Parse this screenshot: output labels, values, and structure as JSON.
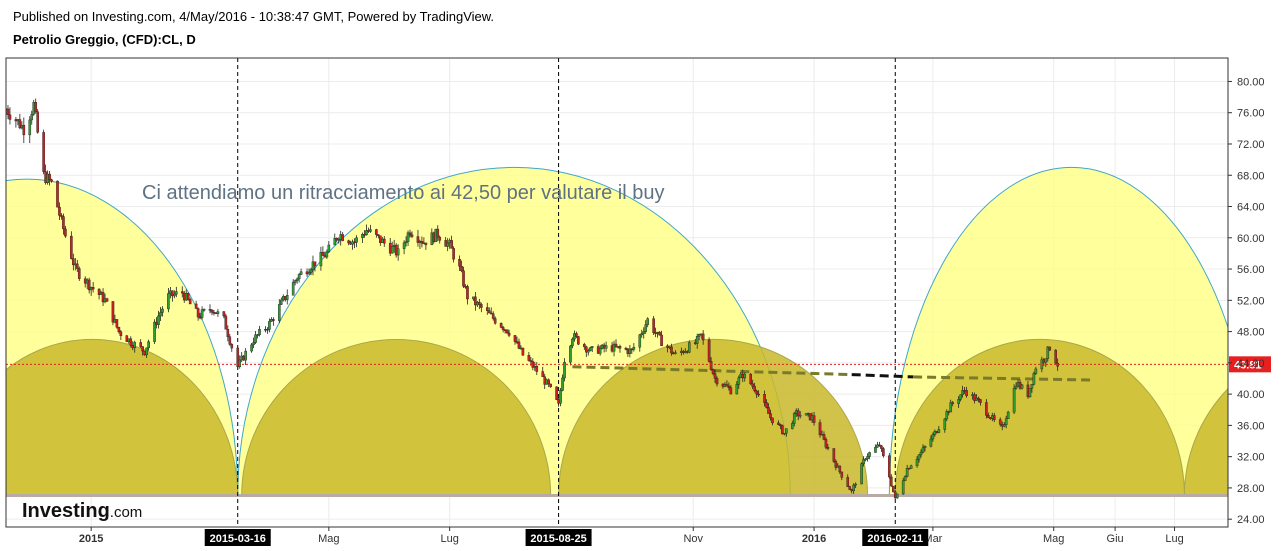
{
  "header": {
    "published": "Published on Investing.com, 4/May/2016 - 10:38:47 GMT, Powered by TradingView.",
    "symbol": "Petrolio Greggio, (CFD):CL, D"
  },
  "annotation": "Ci attendiamo un ritracciamento ai 42,50 per valutare il buy",
  "logo": {
    "main": "Investing",
    "tld": ".com"
  },
  "colors": {
    "up": "#2e9e2e",
    "down": "#cc1f1f",
    "arc_fill": "#ffff80",
    "arc_stroke": "#3ea8c7",
    "inner_fill": "#c9b92a",
    "price_line": "#e62020",
    "trend_line": "#7a7a2a"
  },
  "chart_data": {
    "type": "candlestick",
    "y_ticks": [
      80,
      76,
      72,
      68,
      64,
      60,
      56,
      52,
      48,
      44,
      40,
      36,
      32,
      28,
      24
    ],
    "x_ticks": [
      {
        "label": "2015",
        "date": "2015-01-01",
        "bold": true
      },
      {
        "label": "Mag",
        "date": "2015-05-01"
      },
      {
        "label": "Lug",
        "date": "2015-07-01"
      },
      {
        "label": "Nov",
        "date": "2015-11-01"
      },
      {
        "label": "2016",
        "date": "2016-01-01",
        "bold": true
      },
      {
        "label": "Mar",
        "date": "2016-03-01"
      },
      {
        "label": "Mag",
        "date": "2016-05-01"
      },
      {
        "label": "Giu",
        "date": "2016-06-01"
      },
      {
        "label": "Lug",
        "date": "2016-07-01"
      }
    ],
    "vertical_markers": [
      {
        "label": "2015-03-16",
        "date": "2015-03-16"
      },
      {
        "label": "2015-08-25",
        "date": "2015-08-25"
      },
      {
        "label": "2016-02-11",
        "date": "2016-02-11"
      }
    ],
    "last_price": 43.81,
    "last_price_label": "43.81",
    "ylim": [
      23,
      83
    ],
    "xlim": [
      "2014-11-19",
      "2016-07-28"
    ],
    "path": [
      {
        "date": "2014-11-19",
        "price": 76.5
      },
      {
        "date": "2014-11-28",
        "price": 74.0
      },
      {
        "date": "2014-12-03",
        "price": 77.0
      },
      {
        "date": "2014-12-08",
        "price": 68.0
      },
      {
        "date": "2014-12-12",
        "price": 67.0
      },
      {
        "date": "2014-12-17",
        "price": 62.0
      },
      {
        "date": "2014-12-24",
        "price": 56.0
      },
      {
        "date": "2014-12-31",
        "price": 54.0
      },
      {
        "date": "2015-01-08",
        "price": 52.0
      },
      {
        "date": "2015-01-15",
        "price": 48.0
      },
      {
        "date": "2015-01-22",
        "price": 46.5
      },
      {
        "date": "2015-01-28",
        "price": 45.5
      },
      {
        "date": "2015-02-04",
        "price": 50.0
      },
      {
        "date": "2015-02-09",
        "price": 52.5
      },
      {
        "date": "2015-02-16",
        "price": 53.0
      },
      {
        "date": "2015-02-24",
        "price": 50.0
      },
      {
        "date": "2015-03-03",
        "price": 51.0
      },
      {
        "date": "2015-03-09",
        "price": 49.5
      },
      {
        "date": "2015-03-16",
        "price": 43.5
      },
      {
        "date": "2015-03-24",
        "price": 47.0
      },
      {
        "date": "2015-04-01",
        "price": 49.0
      },
      {
        "date": "2015-04-08",
        "price": 52.0
      },
      {
        "date": "2015-04-15",
        "price": 55.0
      },
      {
        "date": "2015-04-22",
        "price": 56.5
      },
      {
        "date": "2015-04-30",
        "price": 58.0
      },
      {
        "date": "2015-05-06",
        "price": 60.5
      },
      {
        "date": "2015-05-14",
        "price": 59.5
      },
      {
        "date": "2015-05-20",
        "price": 61.0
      },
      {
        "date": "2015-05-28",
        "price": 59.5
      },
      {
        "date": "2015-06-05",
        "price": 58.0
      },
      {
        "date": "2015-06-11",
        "price": 61.0
      },
      {
        "date": "2015-06-18",
        "price": 59.5
      },
      {
        "date": "2015-06-25",
        "price": 60.5
      },
      {
        "date": "2015-07-01",
        "price": 59.0
      },
      {
        "date": "2015-07-06",
        "price": 56.0
      },
      {
        "date": "2015-07-10",
        "price": 52.5
      },
      {
        "date": "2015-07-17",
        "price": 51.0
      },
      {
        "date": "2015-07-24",
        "price": 49.5
      },
      {
        "date": "2015-07-31",
        "price": 48.0
      },
      {
        "date": "2015-08-07",
        "price": 45.0
      },
      {
        "date": "2015-08-14",
        "price": 43.0
      },
      {
        "date": "2015-08-20",
        "price": 41.0
      },
      {
        "date": "2015-08-25",
        "price": 38.5
      },
      {
        "date": "2015-08-28",
        "price": 44.5
      },
      {
        "date": "2015-09-01",
        "price": 47.5
      },
      {
        "date": "2015-09-10",
        "price": 45.5
      },
      {
        "date": "2015-09-20",
        "price": 46.0
      },
      {
        "date": "2015-10-01",
        "price": 45.5
      },
      {
        "date": "2015-10-09",
        "price": 49.5
      },
      {
        "date": "2015-10-15",
        "price": 47.0
      },
      {
        "date": "2015-10-23",
        "price": 45.0
      },
      {
        "date": "2015-11-02",
        "price": 46.5
      },
      {
        "date": "2015-11-05",
        "price": 47.5
      },
      {
        "date": "2015-11-12",
        "price": 42.0
      },
      {
        "date": "2015-11-20",
        "price": 40.5
      },
      {
        "date": "2015-11-26",
        "price": 42.5
      },
      {
        "date": "2015-12-03",
        "price": 40.5
      },
      {
        "date": "2015-12-10",
        "price": 37.0
      },
      {
        "date": "2015-12-17",
        "price": 35.0
      },
      {
        "date": "2015-12-23",
        "price": 37.5
      },
      {
        "date": "2015-12-31",
        "price": 37.0
      },
      {
        "date": "2016-01-07",
        "price": 33.5
      },
      {
        "date": "2016-01-13",
        "price": 30.5
      },
      {
        "date": "2016-01-20",
        "price": 27.5
      },
      {
        "date": "2016-01-27",
        "price": 32.0
      },
      {
        "date": "2016-02-03",
        "price": 33.5
      },
      {
        "date": "2016-02-08",
        "price": 29.5
      },
      {
        "date": "2016-02-11",
        "price": 26.5
      },
      {
        "date": "2016-02-17",
        "price": 30.5
      },
      {
        "date": "2016-02-24",
        "price": 32.5
      },
      {
        "date": "2016-03-02",
        "price": 35.0
      },
      {
        "date": "2016-03-10",
        "price": 38.5
      },
      {
        "date": "2016-03-17",
        "price": 40.5
      },
      {
        "date": "2016-03-24",
        "price": 39.0
      },
      {
        "date": "2016-04-01",
        "price": 36.5
      },
      {
        "date": "2016-04-05",
        "price": 35.5
      },
      {
        "date": "2016-04-12",
        "price": 41.5
      },
      {
        "date": "2016-04-18",
        "price": 40.0
      },
      {
        "date": "2016-04-22",
        "price": 43.5
      },
      {
        "date": "2016-04-26",
        "price": 44.5
      },
      {
        "date": "2016-04-29",
        "price": 46.0
      },
      {
        "date": "2016-05-03",
        "price": 43.81
      }
    ],
    "cycle_arcs": [
      {
        "start": "2014-08-15",
        "end": "2015-03-16",
        "top": 67.5
      },
      {
        "start": "2015-03-16",
        "end": "2015-12-20",
        "top": 69.0
      },
      {
        "start": "2016-02-08",
        "end": "2016-08-10",
        "top": 69.0
      }
    ],
    "inner_arcs": [
      {
        "start": "2014-10-20",
        "end": "2015-03-16",
        "top": 47.0
      },
      {
        "start": "2015-03-18",
        "end": "2015-08-21",
        "top": 47.0
      },
      {
        "start": "2015-08-25",
        "end": "2016-01-28",
        "top": 47.0
      },
      {
        "start": "2016-02-11",
        "end": "2016-07-06",
        "top": 47.0
      },
      {
        "start": "2016-07-06",
        "end": "2016-12-15",
        "top": 47.0
      }
    ],
    "arc_base": 27.0,
    "trend_lines": [
      {
        "start": {
          "date": "2015-09-01",
          "price": 43.5
        },
        "end": {
          "date": "2016-01-20",
          "price": 42.5
        },
        "style": "olive"
      },
      {
        "start": {
          "date": "2016-01-20",
          "price": 42.5
        },
        "end": {
          "date": "2016-02-20",
          "price": 42.2
        },
        "style": "black"
      },
      {
        "start": {
          "date": "2016-02-20",
          "price": 42.2
        },
        "end": {
          "date": "2016-05-20",
          "price": 41.8
        },
        "style": "olive"
      }
    ]
  }
}
